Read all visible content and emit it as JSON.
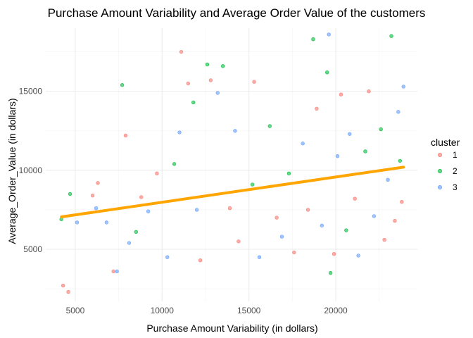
{
  "chart_data": {
    "type": "scatter",
    "title": "Purchase Amount Variability and Average Order Value of the customers",
    "xlabel": "Purchase Amount Variability (in dollars)",
    "ylabel": "Average_Order_Value (in dollars)",
    "xlim": [
      3300,
      24700
    ],
    "ylim": [
      1700,
      19000
    ],
    "x_ticks": [
      {
        "value": 5000,
        "label": "5000"
      },
      {
        "value": 10000,
        "label": "10000"
      },
      {
        "value": 15000,
        "label": "15000"
      },
      {
        "value": 20000,
        "label": "20000"
      }
    ],
    "y_ticks": [
      {
        "value": 5000,
        "label": "5000"
      },
      {
        "value": 10000,
        "label": "10000"
      },
      {
        "value": 15000,
        "label": "15000"
      }
    ],
    "grid": true,
    "legend": {
      "title": "cluster",
      "position": "right"
    },
    "series": [
      {
        "name": "1",
        "color": "#F8766D"
      },
      {
        "name": "2",
        "color": "#00BA38"
      },
      {
        "name": "3",
        "color": "#619CFF"
      }
    ],
    "trend_line": {
      "color": "#FFA500",
      "x": [
        4200,
        23900
      ],
      "y": [
        7050,
        10200
      ]
    },
    "points": [
      {
        "x": 4300,
        "y": 2700,
        "c": 0
      },
      {
        "x": 4600,
        "y": 2300,
        "c": 0
      },
      {
        "x": 4200,
        "y": 6900,
        "c": 1
      },
      {
        "x": 4700,
        "y": 8500,
        "c": 1
      },
      {
        "x": 5100,
        "y": 6700,
        "c": 2
      },
      {
        "x": 6000,
        "y": 8400,
        "c": 0
      },
      {
        "x": 6200,
        "y": 7600,
        "c": 2
      },
      {
        "x": 6300,
        "y": 9200,
        "c": 0
      },
      {
        "x": 6800,
        "y": 6700,
        "c": 2
      },
      {
        "x": 7200,
        "y": 3600,
        "c": 0
      },
      {
        "x": 7400,
        "y": 3600,
        "c": 2
      },
      {
        "x": 7700,
        "y": 15400,
        "c": 1
      },
      {
        "x": 7900,
        "y": 12200,
        "c": 0
      },
      {
        "x": 8100,
        "y": 5400,
        "c": 2
      },
      {
        "x": 8500,
        "y": 6100,
        "c": 1
      },
      {
        "x": 8800,
        "y": 8300,
        "c": 0
      },
      {
        "x": 9200,
        "y": 7400,
        "c": 2
      },
      {
        "x": 9700,
        "y": 9800,
        "c": 0
      },
      {
        "x": 10300,
        "y": 4500,
        "c": 2
      },
      {
        "x": 10700,
        "y": 10400,
        "c": 1
      },
      {
        "x": 11000,
        "y": 12400,
        "c": 2
      },
      {
        "x": 11100,
        "y": 17500,
        "c": 0
      },
      {
        "x": 11500,
        "y": 15500,
        "c": 0
      },
      {
        "x": 11800,
        "y": 14300,
        "c": 1
      },
      {
        "x": 12000,
        "y": 7500,
        "c": 2
      },
      {
        "x": 12200,
        "y": 4300,
        "c": 0
      },
      {
        "x": 12600,
        "y": 16700,
        "c": 1
      },
      {
        "x": 12800,
        "y": 15700,
        "c": 0
      },
      {
        "x": 13200,
        "y": 14900,
        "c": 2
      },
      {
        "x": 13500,
        "y": 16600,
        "c": 1
      },
      {
        "x": 13900,
        "y": 7600,
        "c": 0
      },
      {
        "x": 14200,
        "y": 12500,
        "c": 2
      },
      {
        "x": 14400,
        "y": 5500,
        "c": 0
      },
      {
        "x": 15200,
        "y": 9100,
        "c": 1
      },
      {
        "x": 15300,
        "y": 15600,
        "c": 0
      },
      {
        "x": 15600,
        "y": 4500,
        "c": 2
      },
      {
        "x": 16200,
        "y": 12800,
        "c": 1
      },
      {
        "x": 16600,
        "y": 7000,
        "c": 0
      },
      {
        "x": 16900,
        "y": 5800,
        "c": 2
      },
      {
        "x": 17300,
        "y": 9800,
        "c": 1
      },
      {
        "x": 17600,
        "y": 4800,
        "c": 0
      },
      {
        "x": 18100,
        "y": 11700,
        "c": 2
      },
      {
        "x": 18400,
        "y": 7500,
        "c": 0
      },
      {
        "x": 18700,
        "y": 18300,
        "c": 1
      },
      {
        "x": 18900,
        "y": 13900,
        "c": 0
      },
      {
        "x": 19200,
        "y": 6500,
        "c": 2
      },
      {
        "x": 19500,
        "y": 16200,
        "c": 1
      },
      {
        "x": 19600,
        "y": 18600,
        "c": 2
      },
      {
        "x": 19700,
        "y": 3500,
        "c": 1
      },
      {
        "x": 19900,
        "y": 4700,
        "c": 0
      },
      {
        "x": 20100,
        "y": 10900,
        "c": 2
      },
      {
        "x": 20300,
        "y": 14800,
        "c": 0
      },
      {
        "x": 20600,
        "y": 6200,
        "c": 1
      },
      {
        "x": 20800,
        "y": 12300,
        "c": 2
      },
      {
        "x": 21100,
        "y": 8200,
        "c": 0
      },
      {
        "x": 21300,
        "y": 4600,
        "c": 2
      },
      {
        "x": 21700,
        "y": 11200,
        "c": 1
      },
      {
        "x": 21900,
        "y": 15000,
        "c": 0
      },
      {
        "x": 22200,
        "y": 7100,
        "c": 2
      },
      {
        "x": 22600,
        "y": 12600,
        "c": 1
      },
      {
        "x": 22800,
        "y": 5600,
        "c": 0
      },
      {
        "x": 23000,
        "y": 9400,
        "c": 2
      },
      {
        "x": 23200,
        "y": 18500,
        "c": 1
      },
      {
        "x": 23400,
        "y": 6800,
        "c": 0
      },
      {
        "x": 23600,
        "y": 13700,
        "c": 2
      },
      {
        "x": 23700,
        "y": 10600,
        "c": 1
      },
      {
        "x": 23800,
        "y": 8000,
        "c": 0
      },
      {
        "x": 23900,
        "y": 15300,
        "c": 2
      }
    ]
  }
}
